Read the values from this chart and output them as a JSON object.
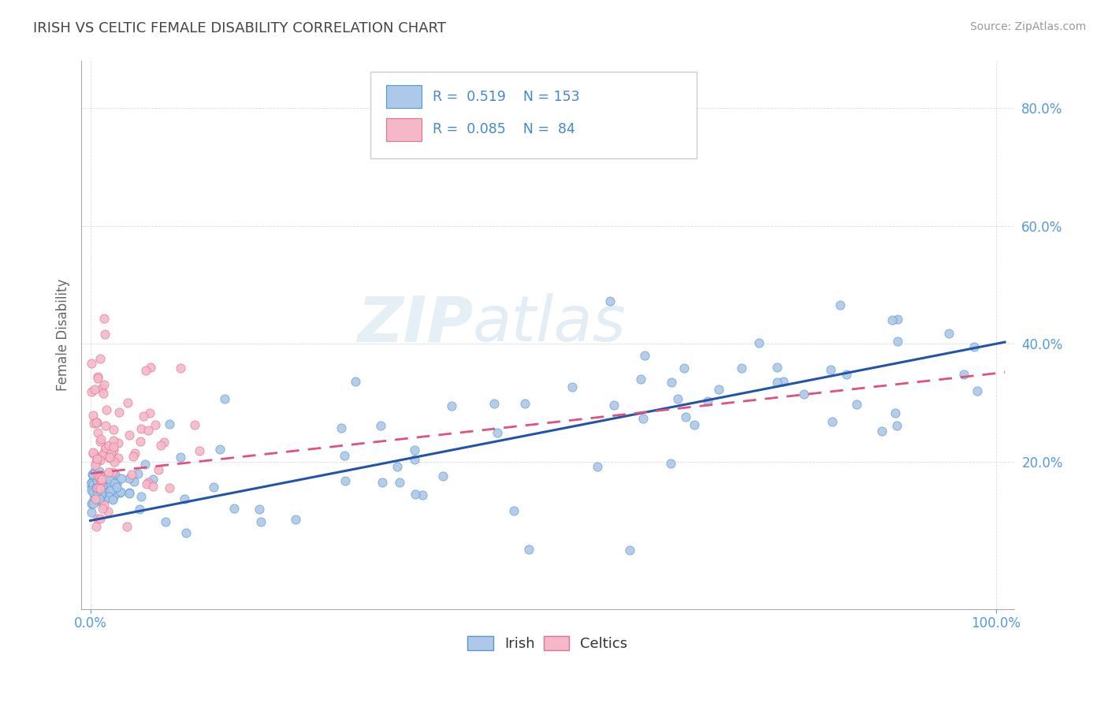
{
  "title": "IRISH VS CELTIC FEMALE DISABILITY CORRELATION CHART",
  "source_text": "Source: ZipAtlas.com",
  "ylabel": "Female Disability",
  "watermark_zip": "ZIP",
  "watermark_atlas": "atlas",
  "irish_color": "#adc8e8",
  "irish_edge_color": "#5599cc",
  "irish_line_color": "#2255aa",
  "celtics_color": "#f5b8c8",
  "celtics_edge_color": "#e07090",
  "celtics_line_color": "#e05080",
  "irish_R": 0.519,
  "irish_N": 153,
  "celtics_R": 0.085,
  "celtics_N": 84,
  "title_color": "#444444",
  "axis_color": "#5599dd",
  "legend_color": "#4488cc",
  "background_color": "#ffffff",
  "grid_color": "#cccccc",
  "right_label_color": "#5599dd",
  "ytick_right_labels": [
    0.2,
    0.4,
    0.6,
    0.8
  ],
  "ylim": [
    -0.05,
    0.88
  ],
  "xlim": [
    -0.01,
    1.02
  ]
}
